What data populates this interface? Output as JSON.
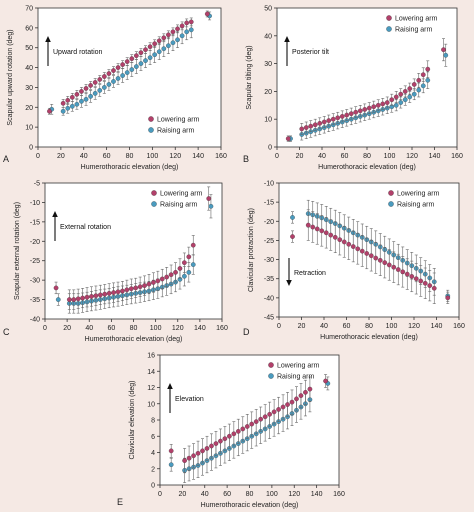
{
  "figure": {
    "background": "#f5e9e4",
    "colors": {
      "lowering": "#b2406a",
      "raising": "#4a9bbf",
      "errorbar": "#666666",
      "axis": "#333333"
    }
  },
  "chart_data": [
    {
      "panel": "A",
      "type": "scatter",
      "xlabel": "Humerothoracic elevation (deg)",
      "ylabel": "Scapular upward rotation (deg)",
      "xlim": [
        0,
        160
      ],
      "ylim": [
        0,
        70
      ],
      "xticks": [
        0,
        20,
        40,
        60,
        80,
        100,
        120,
        140,
        160
      ],
      "yticks": [
        0,
        10,
        20,
        30,
        40,
        50,
        60,
        70
      ],
      "legend": {
        "placement": "bottom-right"
      },
      "annotation": {
        "text": "Upward rotation",
        "arrow": "up"
      },
      "x_lowering": [
        10,
        22,
        26,
        30,
        34,
        38,
        42,
        46,
        50,
        54,
        58,
        62,
        66,
        70,
        74,
        78,
        82,
        86,
        90,
        94,
        98,
        102,
        106,
        110,
        114,
        118,
        122,
        126,
        130,
        134,
        148
      ],
      "x_raising": [
        12,
        22,
        26,
        30,
        34,
        38,
        42,
        46,
        50,
        54,
        58,
        62,
        66,
        70,
        74,
        78,
        82,
        86,
        90,
        94,
        98,
        102,
        106,
        110,
        114,
        118,
        122,
        126,
        130,
        134,
        150
      ],
      "series": [
        {
          "name": "Lowering arm",
          "values": [
            18,
            22,
            23.5,
            25,
            26.5,
            28,
            29.5,
            31,
            32.5,
            34,
            35.5,
            37,
            38.5,
            40,
            41.5,
            43,
            44.5,
            46,
            47.5,
            49,
            50.5,
            52,
            53.5,
            55,
            56.5,
            58,
            59.5,
            61,
            62.5,
            63,
            67
          ],
          "error": [
            1.5,
            2,
            2,
            2,
            2,
            2,
            2,
            2,
            2,
            2,
            2,
            2,
            2,
            2,
            2,
            2,
            2,
            2,
            2,
            2,
            2,
            2,
            2,
            2,
            2,
            2,
            2,
            2,
            2,
            2,
            1.5
          ]
        },
        {
          "name": "Raising arm",
          "values": [
            19,
            18,
            19.5,
            20.5,
            21.5,
            23,
            24,
            25.5,
            27,
            28.5,
            30,
            31.5,
            33,
            34.5,
            36,
            37.5,
            39,
            40.5,
            42,
            43.5,
            45,
            46.5,
            48,
            49.5,
            51,
            52.5,
            54,
            56,
            58,
            59,
            66
          ],
          "error": [
            2.5,
            2,
            2.5,
            2.5,
            2.5,
            3,
            3,
            3,
            3,
            3,
            3,
            3,
            3,
            3,
            3.5,
            3.5,
            3.5,
            3.5,
            3.5,
            3.5,
            3.5,
            4,
            4,
            4,
            4,
            4,
            4,
            4,
            4,
            4,
            2
          ]
        }
      ]
    },
    {
      "panel": "B",
      "type": "scatter",
      "xlabel": "Humerothoracic elevation (deg)",
      "ylabel": "Scapular tilting (deg)",
      "xlim": [
        0,
        160
      ],
      "ylim": [
        0,
        50
      ],
      "xticks": [
        0,
        20,
        40,
        60,
        80,
        100,
        120,
        140,
        160
      ],
      "yticks": [
        0,
        10,
        20,
        30,
        40,
        50
      ],
      "legend": {
        "placement": "top-right"
      },
      "annotation": {
        "text": "Posterior tilt",
        "arrow": "up"
      },
      "x_lowering": [
        10,
        22,
        26,
        30,
        34,
        38,
        42,
        46,
        50,
        54,
        58,
        62,
        66,
        70,
        74,
        78,
        82,
        86,
        90,
        94,
        98,
        102,
        106,
        110,
        114,
        118,
        122,
        126,
        130,
        134,
        148
      ],
      "x_raising": [
        12,
        22,
        26,
        30,
        34,
        38,
        42,
        46,
        50,
        54,
        58,
        62,
        66,
        70,
        74,
        78,
        82,
        86,
        90,
        94,
        98,
        102,
        106,
        110,
        114,
        118,
        122,
        126,
        130,
        134,
        150
      ],
      "series": [
        {
          "name": "Lowering arm",
          "values": [
            3,
            6.5,
            7,
            7.5,
            8,
            8.5,
            9,
            9.5,
            10,
            10.5,
            11,
            11.5,
            12,
            12.5,
            13,
            13.5,
            14,
            14.5,
            15,
            15.5,
            16,
            17,
            18,
            19,
            20,
            21,
            22.5,
            24,
            26,
            28,
            35
          ],
          "error": [
            1,
            2,
            2,
            2,
            2,
            2,
            2,
            2,
            2,
            2,
            2,
            2,
            2,
            2,
            2,
            2,
            2,
            2,
            2,
            2,
            2,
            2,
            2,
            2,
            2,
            2,
            2,
            2.5,
            2.5,
            3,
            4
          ]
        },
        {
          "name": "Raising arm",
          "values": [
            3,
            4.5,
            5,
            5.5,
            6,
            6.5,
            7,
            7.5,
            8,
            8.5,
            9,
            9.5,
            10,
            10.5,
            11,
            11.5,
            12,
            12.5,
            13,
            13.5,
            14,
            14.5,
            15,
            16,
            17,
            18,
            19,
            20.5,
            22,
            24,
            33
          ],
          "error": [
            1,
            2,
            2,
            2,
            2,
            2,
            2,
            2,
            2,
            2,
            2,
            2,
            2,
            2,
            2,
            2,
            2,
            2,
            2,
            2,
            2,
            2,
            2,
            2,
            2,
            2,
            2,
            2.5,
            2.5,
            3,
            4
          ]
        }
      ]
    },
    {
      "panel": "C",
      "type": "scatter",
      "xlabel": "Humerothoracic elevation (deg)",
      "ylabel": "Scapular external rotation (deg)",
      "xlim": [
        0,
        160
      ],
      "ylim": [
        -40,
        -5
      ],
      "xticks": [
        0,
        20,
        40,
        60,
        80,
        100,
        120,
        140,
        160
      ],
      "yticks": [
        -40,
        -35,
        -30,
        -25,
        -20,
        -15,
        -10,
        -5
      ],
      "legend": {
        "placement": "top-right"
      },
      "annotation": {
        "text": "External rotation",
        "arrow": "up"
      },
      "x_lowering": [
        10,
        22,
        26,
        30,
        34,
        38,
        42,
        46,
        50,
        54,
        58,
        62,
        66,
        70,
        74,
        78,
        82,
        86,
        90,
        94,
        98,
        102,
        106,
        110,
        114,
        118,
        122,
        126,
        130,
        134,
        148
      ],
      "x_raising": [
        12,
        22,
        26,
        30,
        34,
        38,
        42,
        46,
        50,
        54,
        58,
        62,
        66,
        70,
        74,
        78,
        82,
        86,
        90,
        94,
        98,
        102,
        106,
        110,
        114,
        118,
        122,
        126,
        130,
        134,
        150
      ],
      "series": [
        {
          "name": "Lowering arm",
          "values": [
            -32,
            -35,
            -35,
            -34.8,
            -34.6,
            -34.4,
            -34.2,
            -34,
            -33.8,
            -33.6,
            -33.4,
            -33.2,
            -33,
            -32.8,
            -32.5,
            -32.2,
            -32,
            -31.7,
            -31.4,
            -31,
            -30.6,
            -30.2,
            -29.7,
            -29.2,
            -28.6,
            -28,
            -27,
            -25.5,
            -24,
            -21,
            -9
          ],
          "error": [
            1.5,
            2.5,
            2.5,
            2.5,
            2.5,
            2.5,
            2.5,
            2.5,
            2.5,
            2.5,
            2.5,
            2.5,
            2.5,
            2.5,
            2.5,
            2.5,
            2.5,
            2.5,
            2.5,
            2.5,
            2.5,
            2.5,
            2.5,
            2.5,
            2.5,
            2.5,
            2.5,
            2.5,
            2.5,
            2.5,
            3
          ]
        },
        {
          "name": "Raising arm",
          "values": [
            -35,
            -36,
            -36,
            -36,
            -35.8,
            -35.6,
            -35.4,
            -35.2,
            -35,
            -34.8,
            -34.6,
            -34.4,
            -34.2,
            -34,
            -33.8,
            -33.6,
            -33.4,
            -33.2,
            -33,
            -32.8,
            -32.5,
            -32.2,
            -31.8,
            -31.4,
            -31,
            -30.5,
            -29.8,
            -29,
            -28,
            -26,
            -11
          ],
          "error": [
            1.5,
            2.5,
            2.5,
            2.5,
            2.5,
            2.5,
            2.5,
            2.5,
            2.5,
            2.5,
            2.5,
            2.5,
            2.5,
            2.5,
            2.5,
            2.5,
            2.5,
            2.5,
            2.5,
            2.5,
            2.5,
            2.5,
            2.5,
            2.5,
            2.5,
            2.5,
            2.5,
            2.5,
            2.5,
            2.5,
            3
          ]
        }
      ]
    },
    {
      "panel": "D",
      "type": "scatter",
      "xlabel": "Humerothoracic elevation (deg)",
      "ylabel": "Clavicular protraction (deg)",
      "xlim": [
        0,
        160
      ],
      "ylim": [
        -45,
        -10
      ],
      "xticks": [
        0,
        20,
        40,
        60,
        80,
        100,
        120,
        140,
        160
      ],
      "yticks": [
        -45,
        -40,
        -35,
        -30,
        -25,
        -20,
        -15,
        -10
      ],
      "legend": {
        "placement": "top-right"
      },
      "annotation": {
        "text": "Retraction",
        "arrow": "down"
      },
      "x_lowering": [
        12,
        26,
        30,
        34,
        38,
        42,
        46,
        50,
        54,
        58,
        62,
        66,
        70,
        74,
        78,
        82,
        86,
        90,
        94,
        98,
        102,
        106,
        110,
        114,
        118,
        122,
        126,
        130,
        134,
        138,
        150
      ],
      "x_raising": [
        12,
        26,
        30,
        34,
        38,
        42,
        46,
        50,
        54,
        58,
        62,
        66,
        70,
        74,
        78,
        82,
        86,
        90,
        94,
        98,
        102,
        106,
        110,
        114,
        118,
        122,
        126,
        130,
        134,
        138,
        150
      ],
      "series": [
        {
          "name": "Lowering arm",
          "values": [
            -24,
            -21,
            -21.5,
            -22,
            -22.5,
            -23,
            -23.6,
            -24.2,
            -24.8,
            -25.4,
            -26,
            -26.6,
            -27.2,
            -27.8,
            -28.4,
            -29,
            -29.6,
            -30.2,
            -30.8,
            -31.4,
            -32,
            -32.6,
            -33.2,
            -33.8,
            -34.4,
            -35,
            -35.6,
            -36.2,
            -36.8,
            -37.5,
            -40
          ],
          "error": [
            1.5,
            4,
            4,
            4,
            4,
            4,
            4,
            4,
            4,
            4,
            4,
            4,
            4,
            4,
            4,
            4,
            4,
            4,
            4,
            4,
            4,
            4,
            4,
            4,
            4,
            4,
            4,
            4,
            4,
            4,
            1.5
          ]
        },
        {
          "name": "Raising arm",
          "values": [
            -19,
            -18,
            -18.3,
            -18.7,
            -19.1,
            -19.6,
            -20.1,
            -20.6,
            -21.2,
            -21.8,
            -22.4,
            -23,
            -23.6,
            -24.2,
            -24.8,
            -25.4,
            -26,
            -26.7,
            -27.4,
            -28.1,
            -28.8,
            -29.5,
            -30.2,
            -30.9,
            -31.6,
            -32.3,
            -33,
            -33.8,
            -34.8,
            -35.8,
            -39.5
          ],
          "error": [
            1.5,
            3.5,
            3.5,
            3.5,
            3.5,
            3.5,
            3.5,
            3.5,
            3.5,
            3.5,
            3.5,
            3.5,
            3.5,
            3.5,
            3.5,
            3.5,
            3.5,
            3.5,
            3.5,
            3.5,
            3.5,
            3.5,
            3.5,
            3.5,
            3.5,
            3.5,
            3.5,
            3.5,
            3.5,
            3.5,
            1.5
          ]
        }
      ]
    },
    {
      "panel": "E",
      "type": "scatter",
      "xlabel": "Humerothoracic elevation (deg)",
      "ylabel": "Clavicular elevation (deg)",
      "xlim": [
        0,
        160
      ],
      "ylim": [
        0,
        16
      ],
      "xticks": [
        0,
        20,
        40,
        60,
        80,
        100,
        120,
        140,
        160
      ],
      "yticks": [
        0,
        2,
        4,
        6,
        8,
        10,
        12,
        14,
        16
      ],
      "legend": {
        "placement": "top-right"
      },
      "annotation": {
        "text": "Elevation",
        "arrow": "up"
      },
      "x_lowering": [
        10,
        22,
        26,
        30,
        34,
        38,
        42,
        46,
        50,
        54,
        58,
        62,
        66,
        70,
        74,
        78,
        82,
        86,
        90,
        94,
        98,
        102,
        106,
        110,
        114,
        118,
        122,
        126,
        130,
        134,
        148
      ],
      "x_raising": [
        10,
        22,
        26,
        30,
        34,
        38,
        42,
        46,
        50,
        54,
        58,
        62,
        66,
        70,
        74,
        78,
        82,
        86,
        90,
        94,
        98,
        102,
        106,
        110,
        114,
        118,
        122,
        126,
        130,
        134,
        150
      ],
      "series": [
        {
          "name": "Lowering arm",
          "values": [
            4.2,
            3,
            3.3,
            3.6,
            3.9,
            4.2,
            4.5,
            4.8,
            5.1,
            5.4,
            5.7,
            6,
            6.3,
            6.6,
            6.9,
            7.2,
            7.5,
            7.8,
            8.1,
            8.4,
            8.7,
            9,
            9.3,
            9.6,
            9.9,
            10.2,
            10.6,
            11,
            11.4,
            11.8,
            12.8
          ],
          "error": [
            0.8,
            1.5,
            1.5,
            1.5,
            1.5,
            1.5,
            1.5,
            1.5,
            1.5,
            1.5,
            1.5,
            1.5,
            1.5,
            1.5,
            1.5,
            1.5,
            1.5,
            1.5,
            1.5,
            1.5,
            1.5,
            1.5,
            1.5,
            1.5,
            1.5,
            1.5,
            1.5,
            1.5,
            1.5,
            1.5,
            0.8
          ]
        },
        {
          "name": "Raising arm",
          "values": [
            2.5,
            1.8,
            2,
            2.2,
            2.4,
            2.7,
            3,
            3.3,
            3.6,
            3.9,
            4.2,
            4.5,
            4.8,
            5.1,
            5.4,
            5.7,
            6,
            6.3,
            6.6,
            6.9,
            7.2,
            7.5,
            7.8,
            8.1,
            8.4,
            8.8,
            9.2,
            9.6,
            10,
            10.5,
            12.5
          ],
          "error": [
            0.8,
            1.5,
            1.5,
            1.5,
            1.5,
            1.5,
            1.5,
            1.5,
            1.5,
            1.5,
            1.5,
            1.5,
            1.5,
            1.5,
            1.5,
            1.5,
            1.5,
            1.5,
            1.5,
            1.5,
            1.5,
            1.5,
            1.5,
            1.5,
            1.5,
            1.5,
            1.5,
            1.5,
            1.5,
            1.5,
            0.8
          ]
        }
      ]
    }
  ]
}
